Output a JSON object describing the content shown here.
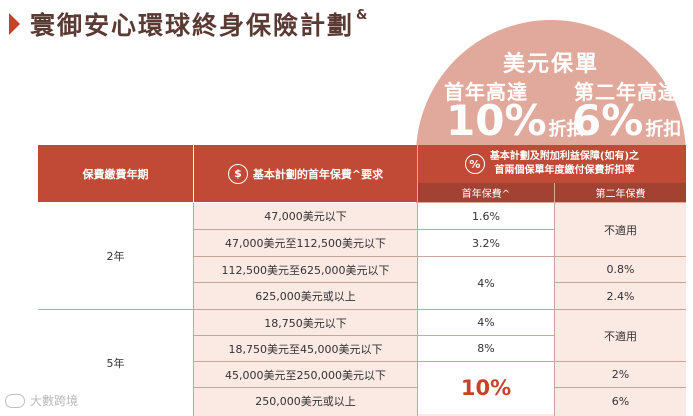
{
  "title": {
    "text": "寰御安心環球終身保險計劃",
    "mark": "&"
  },
  "promo": {
    "heading": "美元保單",
    "first_year_label": "首年高達",
    "first_year_pct": "10%",
    "first_year_unit": "折扣",
    "second_year_label": "第二年高達",
    "second_year_pct": "6%",
    "second_year_unit": "折扣"
  },
  "table": {
    "headers": {
      "term": "保費繳費年期",
      "premium_icon": "$",
      "premium": "基本計劃的首年保費^要求",
      "discount_icon": "%",
      "discount_line1": "基本計劃及附加利益保障(如有)之",
      "discount_line2": "首兩個保單年度繳付保費折扣率",
      "first_year": "首年保費^",
      "second_year": "第二年保費"
    },
    "groups": [
      {
        "term": "2年",
        "rows": [
          {
            "premium": "47,000美元以下",
            "first": "1.6%"
          },
          {
            "premium": "47,000美元至112,500美元以下",
            "first": "3.2%"
          },
          {
            "premium": "112,500美元至625,000美元以下"
          },
          {
            "premium": "625,000美元或以上"
          }
        ],
        "first_merged": "4%",
        "second": [
          "不適用",
          "0.8%",
          "2.4%"
        ]
      },
      {
        "term": "5年",
        "rows": [
          {
            "premium": "18,750美元以下",
            "first": "4%"
          },
          {
            "premium": "18,750美元至45,000美元以下",
            "first": "8%"
          },
          {
            "premium": "45,000美元至250,000美元以下"
          },
          {
            "premium": "250,000美元或以上"
          }
        ],
        "first_merged": "10%",
        "second": [
          "不適用",
          "2%",
          "6%"
        ]
      }
    ]
  },
  "watermark": "大數跨境",
  "colors": {
    "header": "#c04a35",
    "subheader": "#a34132",
    "band": "#fbe9e4",
    "promo": "#e1a99b",
    "accent": "#c8422a"
  }
}
